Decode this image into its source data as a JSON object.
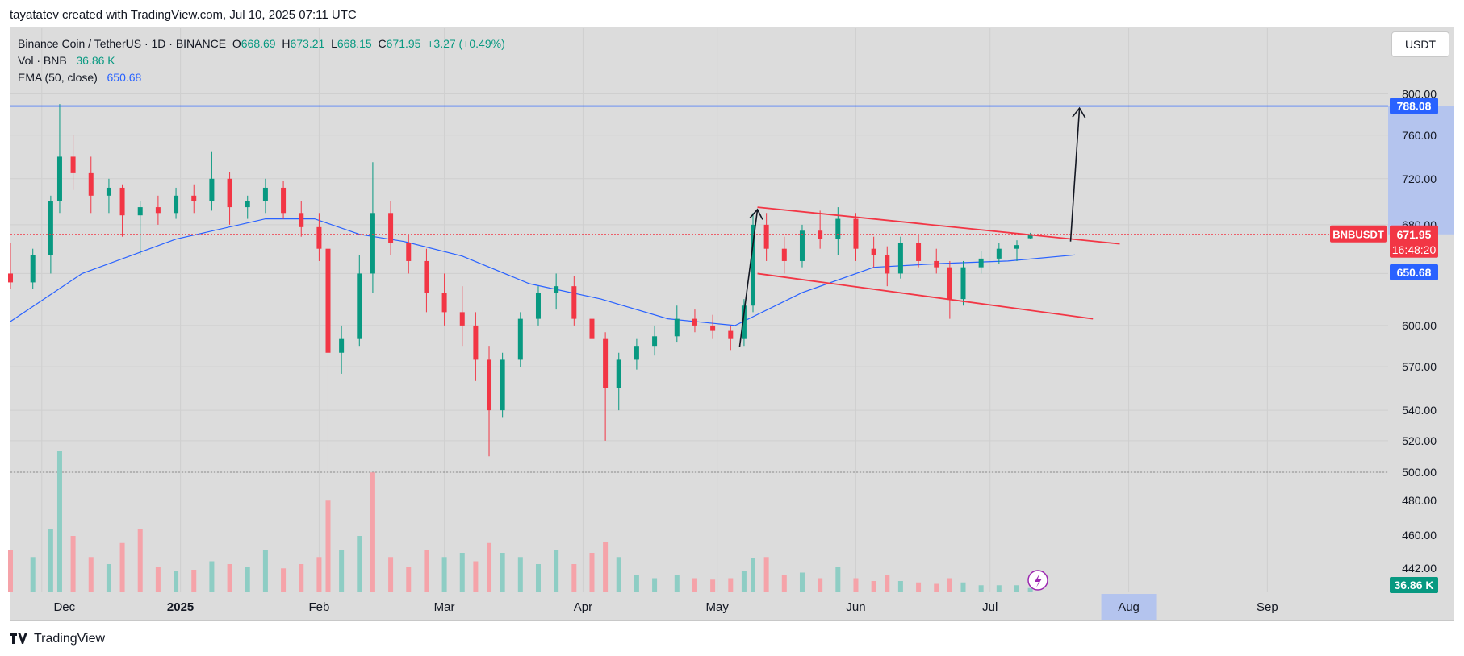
{
  "attribution": "tayatatev created with TradingView.com, Jul 10, 2025 07:11 UTC",
  "currency_button": "USDT",
  "footer_brand": "TradingView",
  "legend": {
    "symbol": "Binance Coin / TetherUS · 1D · BINANCE",
    "open_label": "O",
    "open": "668.69",
    "high_label": "H",
    "high": "673.21",
    "low_label": "L",
    "low": "668.15",
    "close_label": "C",
    "close": "671.95",
    "change": "+3.27 (+0.49%)",
    "vol_label": "Vol · BNB",
    "vol_value": "36.86 K",
    "ema_label": "EMA (50, close)",
    "ema_value": "650.68"
  },
  "colors": {
    "up": "#089981",
    "down": "#f23645",
    "ema": "#2962ff",
    "target": "#2962ff",
    "channel": "#f23645",
    "arrow": "#131722"
  },
  "chart_data": {
    "type": "candlestick",
    "symbol": "BNBUSDT",
    "price_axis": {
      "ticks": [
        500,
        520,
        540,
        570,
        600,
        640,
        680,
        720,
        760,
        800
      ]
    },
    "price_axis_tick_labels": [
      "500.00",
      "520.00",
      "540.00",
      "570.00",
      "600.00",
      "640.00",
      "680.00",
      "720.00",
      "760.00",
      "800.00"
    ],
    "volume_axis_tick_labels": [
      "480.00",
      "460.00",
      "442.00"
    ],
    "time_axis": {
      "labels": [
        "Dec",
        "2025",
        "Feb",
        "Mar",
        "Apr",
        "May",
        "Jun",
        "Jul",
        "Aug",
        "Sep"
      ],
      "label_dates": [
        "2024-12-01",
        "2025-01-01",
        "2025-02-01",
        "2025-03-01",
        "2025-04-01",
        "2025-05-01",
        "2025-06-01",
        "2025-07-01",
        "2025-08-01",
        "2025-09-01"
      ],
      "highlighted": "Aug"
    },
    "x_range": [
      "2024-11-24",
      "2025-09-28"
    ],
    "price_range": [
      500,
      815
    ],
    "badges": {
      "symbol": "BNBUSDT",
      "last_price": "671.95",
      "countdown": "16:48:20",
      "ema": "650.68",
      "target": "788.08",
      "volume": "36.86 K"
    },
    "target_level": 788.08,
    "last_price": 671.95,
    "series": [
      {
        "date": "2024-11-24",
        "o": 640,
        "h": 665,
        "l": 628,
        "c": 633
      },
      {
        "date": "2024-11-29",
        "o": 633,
        "h": 660,
        "l": 628,
        "c": 655
      },
      {
        "date": "2024-12-03",
        "o": 655,
        "h": 705,
        "l": 640,
        "c": 700
      },
      {
        "date": "2024-12-05",
        "o": 700,
        "h": 790,
        "l": 690,
        "c": 740
      },
      {
        "date": "2024-12-08",
        "o": 740,
        "h": 760,
        "l": 710,
        "c": 725
      },
      {
        "date": "2024-12-12",
        "o": 725,
        "h": 740,
        "l": 690,
        "c": 705
      },
      {
        "date": "2024-12-16",
        "o": 705,
        "h": 720,
        "l": 690,
        "c": 712
      },
      {
        "date": "2024-12-19",
        "o": 712,
        "h": 715,
        "l": 670,
        "c": 688
      },
      {
        "date": "2024-12-23",
        "o": 688,
        "h": 700,
        "l": 655,
        "c": 695
      },
      {
        "date": "2024-12-27",
        "o": 695,
        "h": 705,
        "l": 680,
        "c": 690
      },
      {
        "date": "2024-12-31",
        "o": 690,
        "h": 712,
        "l": 685,
        "c": 705
      },
      {
        "date": "2025-01-04",
        "o": 705,
        "h": 715,
        "l": 690,
        "c": 700
      },
      {
        "date": "2025-01-08",
        "o": 700,
        "h": 745,
        "l": 692,
        "c": 720
      },
      {
        "date": "2025-01-12",
        "o": 720,
        "h": 726,
        "l": 680,
        "c": 695
      },
      {
        "date": "2025-01-16",
        "o": 695,
        "h": 705,
        "l": 685,
        "c": 700
      },
      {
        "date": "2025-01-20",
        "o": 700,
        "h": 720,
        "l": 690,
        "c": 712
      },
      {
        "date": "2025-01-24",
        "o": 712,
        "h": 718,
        "l": 685,
        "c": 690
      },
      {
        "date": "2025-01-28",
        "o": 690,
        "h": 700,
        "l": 670,
        "c": 678
      },
      {
        "date": "2025-02-01",
        "o": 678,
        "h": 690,
        "l": 650,
        "c": 660
      },
      {
        "date": "2025-02-03",
        "o": 660,
        "h": 665,
        "l": 500,
        "c": 580
      },
      {
        "date": "2025-02-06",
        "o": 580,
        "h": 600,
        "l": 565,
        "c": 590
      },
      {
        "date": "2025-02-10",
        "o": 590,
        "h": 655,
        "l": 585,
        "c": 640
      },
      {
        "date": "2025-02-13",
        "o": 640,
        "h": 735,
        "l": 625,
        "c": 690
      },
      {
        "date": "2025-02-17",
        "o": 690,
        "h": 700,
        "l": 655,
        "c": 665
      },
      {
        "date": "2025-02-21",
        "o": 665,
        "h": 672,
        "l": 640,
        "c": 650
      },
      {
        "date": "2025-02-25",
        "o": 650,
        "h": 660,
        "l": 610,
        "c": 625
      },
      {
        "date": "2025-03-01",
        "o": 625,
        "h": 640,
        "l": 600,
        "c": 610
      },
      {
        "date": "2025-03-05",
        "o": 610,
        "h": 630,
        "l": 585,
        "c": 600
      },
      {
        "date": "2025-03-08",
        "o": 600,
        "h": 610,
        "l": 560,
        "c": 575
      },
      {
        "date": "2025-03-11",
        "o": 575,
        "h": 585,
        "l": 510,
        "c": 540
      },
      {
        "date": "2025-03-14",
        "o": 540,
        "h": 580,
        "l": 535,
        "c": 575
      },
      {
        "date": "2025-03-18",
        "o": 575,
        "h": 610,
        "l": 570,
        "c": 605
      },
      {
        "date": "2025-03-22",
        "o": 605,
        "h": 630,
        "l": 600,
        "c": 625
      },
      {
        "date": "2025-03-26",
        "o": 625,
        "h": 640,
        "l": 612,
        "c": 630
      },
      {
        "date": "2025-03-30",
        "o": 630,
        "h": 638,
        "l": 600,
        "c": 605
      },
      {
        "date": "2025-04-03",
        "o": 605,
        "h": 615,
        "l": 585,
        "c": 590
      },
      {
        "date": "2025-04-06",
        "o": 590,
        "h": 595,
        "l": 520,
        "c": 555
      },
      {
        "date": "2025-04-09",
        "o": 555,
        "h": 580,
        "l": 540,
        "c": 575
      },
      {
        "date": "2025-04-13",
        "o": 575,
        "h": 590,
        "l": 568,
        "c": 585
      },
      {
        "date": "2025-04-17",
        "o": 585,
        "h": 600,
        "l": 578,
        "c": 592
      },
      {
        "date": "2025-04-22",
        "o": 592,
        "h": 615,
        "l": 588,
        "c": 605
      },
      {
        "date": "2025-04-26",
        "o": 605,
        "h": 612,
        "l": 595,
        "c": 600
      },
      {
        "date": "2025-04-30",
        "o": 600,
        "h": 608,
        "l": 590,
        "c": 596
      },
      {
        "date": "2025-05-04",
        "o": 596,
        "h": 600,
        "l": 582,
        "c": 590
      },
      {
        "date": "2025-05-07",
        "o": 590,
        "h": 620,
        "l": 585,
        "c": 615
      },
      {
        "date": "2025-05-09",
        "o": 615,
        "h": 690,
        "l": 610,
        "c": 680
      },
      {
        "date": "2025-05-12",
        "o": 680,
        "h": 690,
        "l": 650,
        "c": 660
      },
      {
        "date": "2025-05-16",
        "o": 660,
        "h": 670,
        "l": 640,
        "c": 650
      },
      {
        "date": "2025-05-20",
        "o": 650,
        "h": 680,
        "l": 645,
        "c": 675
      },
      {
        "date": "2025-05-24",
        "o": 675,
        "h": 692,
        "l": 660,
        "c": 668
      },
      {
        "date": "2025-05-28",
        "o": 668,
        "h": 695,
        "l": 655,
        "c": 685
      },
      {
        "date": "2025-06-01",
        "o": 685,
        "h": 690,
        "l": 650,
        "c": 660
      },
      {
        "date": "2025-06-05",
        "o": 660,
        "h": 670,
        "l": 645,
        "c": 655
      },
      {
        "date": "2025-06-08",
        "o": 655,
        "h": 662,
        "l": 630,
        "c": 640
      },
      {
        "date": "2025-06-11",
        "o": 640,
        "h": 670,
        "l": 636,
        "c": 665
      },
      {
        "date": "2025-06-15",
        "o": 665,
        "h": 672,
        "l": 645,
        "c": 650
      },
      {
        "date": "2025-06-19",
        "o": 650,
        "h": 660,
        "l": 640,
        "c": 645
      },
      {
        "date": "2025-06-22",
        "o": 645,
        "h": 650,
        "l": 605,
        "c": 620
      },
      {
        "date": "2025-06-25",
        "o": 620,
        "h": 650,
        "l": 615,
        "c": 645
      },
      {
        "date": "2025-06-29",
        "o": 645,
        "h": 658,
        "l": 640,
        "c": 652
      },
      {
        "date": "2025-07-03",
        "o": 652,
        "h": 665,
        "l": 648,
        "c": 660
      },
      {
        "date": "2025-07-07",
        "o": 660,
        "h": 667,
        "l": 650,
        "c": 663
      },
      {
        "date": "2025-07-10",
        "o": 668.69,
        "h": 673.21,
        "l": 668.15,
        "c": 671.95
      }
    ],
    "ema": [
      {
        "date": "2024-11-24",
        "v": 603
      },
      {
        "date": "2024-12-10",
        "v": 640
      },
      {
        "date": "2024-12-31",
        "v": 668
      },
      {
        "date": "2025-01-20",
        "v": 685
      },
      {
        "date": "2025-01-31",
        "v": 685
      },
      {
        "date": "2025-02-10",
        "v": 672
      },
      {
        "date": "2025-02-20",
        "v": 666
      },
      {
        "date": "2025-03-05",
        "v": 654
      },
      {
        "date": "2025-03-20",
        "v": 632
      },
      {
        "date": "2025-04-05",
        "v": 620
      },
      {
        "date": "2025-04-20",
        "v": 605
      },
      {
        "date": "2025-05-05",
        "v": 600
      },
      {
        "date": "2025-05-20",
        "v": 625
      },
      {
        "date": "2025-06-05",
        "v": 645
      },
      {
        "date": "2025-06-20",
        "v": 648
      },
      {
        "date": "2025-07-05",
        "v": 650
      },
      {
        "date": "2025-07-20",
        "v": 655
      }
    ],
    "volume": [
      {
        "date": "2024-11-24",
        "v": 0.3,
        "d": 1
      },
      {
        "date": "2024-11-29",
        "v": 0.25,
        "d": 0
      },
      {
        "date": "2024-12-03",
        "v": 0.45,
        "d": 0
      },
      {
        "date": "2024-12-05",
        "v": 1.0,
        "d": 0
      },
      {
        "date": "2024-12-08",
        "v": 0.4,
        "d": 1
      },
      {
        "date": "2024-12-12",
        "v": 0.25,
        "d": 1
      },
      {
        "date": "2024-12-16",
        "v": 0.2,
        "d": 0
      },
      {
        "date": "2024-12-19",
        "v": 0.35,
        "d": 1
      },
      {
        "date": "2024-12-23",
        "v": 0.45,
        "d": 1
      },
      {
        "date": "2024-12-27",
        "v": 0.18,
        "d": 1
      },
      {
        "date": "2024-12-31",
        "v": 0.15,
        "d": 0
      },
      {
        "date": "2025-01-04",
        "v": 0.16,
        "d": 1
      },
      {
        "date": "2025-01-08",
        "v": 0.22,
        "d": 0
      },
      {
        "date": "2025-01-12",
        "v": 0.2,
        "d": 1
      },
      {
        "date": "2025-01-16",
        "v": 0.18,
        "d": 0
      },
      {
        "date": "2025-01-20",
        "v": 0.3,
        "d": 0
      },
      {
        "date": "2025-01-24",
        "v": 0.17,
        "d": 1
      },
      {
        "date": "2025-01-28",
        "v": 0.2,
        "d": 1
      },
      {
        "date": "2025-02-01",
        "v": 0.25,
        "d": 1
      },
      {
        "date": "2025-02-03",
        "v": 0.65,
        "d": 1
      },
      {
        "date": "2025-02-06",
        "v": 0.3,
        "d": 0
      },
      {
        "date": "2025-02-10",
        "v": 0.4,
        "d": 0
      },
      {
        "date": "2025-02-13",
        "v": 0.85,
        "d": 1
      },
      {
        "date": "2025-02-17",
        "v": 0.25,
        "d": 1
      },
      {
        "date": "2025-02-21",
        "v": 0.18,
        "d": 1
      },
      {
        "date": "2025-02-25",
        "v": 0.3,
        "d": 1
      },
      {
        "date": "2025-03-01",
        "v": 0.25,
        "d": 0
      },
      {
        "date": "2025-03-05",
        "v": 0.28,
        "d": 0
      },
      {
        "date": "2025-03-08",
        "v": 0.22,
        "d": 1
      },
      {
        "date": "2025-03-11",
        "v": 0.35,
        "d": 1
      },
      {
        "date": "2025-03-14",
        "v": 0.28,
        "d": 0
      },
      {
        "date": "2025-03-18",
        "v": 0.25,
        "d": 0
      },
      {
        "date": "2025-03-22",
        "v": 0.2,
        "d": 0
      },
      {
        "date": "2025-03-26",
        "v": 0.3,
        "d": 0
      },
      {
        "date": "2025-03-30",
        "v": 0.2,
        "d": 1
      },
      {
        "date": "2025-04-03",
        "v": 0.28,
        "d": 1
      },
      {
        "date": "2025-04-06",
        "v": 0.36,
        "d": 1
      },
      {
        "date": "2025-04-09",
        "v": 0.25,
        "d": 0
      },
      {
        "date": "2025-04-13",
        "v": 0.12,
        "d": 0
      },
      {
        "date": "2025-04-17",
        "v": 0.1,
        "d": 0
      },
      {
        "date": "2025-04-22",
        "v": 0.12,
        "d": 0
      },
      {
        "date": "2025-04-26",
        "v": 0.1,
        "d": 1
      },
      {
        "date": "2025-04-30",
        "v": 0.09,
        "d": 1
      },
      {
        "date": "2025-05-04",
        "v": 0.1,
        "d": 1
      },
      {
        "date": "2025-05-07",
        "v": 0.15,
        "d": 0
      },
      {
        "date": "2025-05-09",
        "v": 0.24,
        "d": 0
      },
      {
        "date": "2025-05-12",
        "v": 0.25,
        "d": 1
      },
      {
        "date": "2025-05-16",
        "v": 0.12,
        "d": 1
      },
      {
        "date": "2025-05-20",
        "v": 0.14,
        "d": 0
      },
      {
        "date": "2025-05-24",
        "v": 0.1,
        "d": 1
      },
      {
        "date": "2025-05-28",
        "v": 0.18,
        "d": 0
      },
      {
        "date": "2025-06-01",
        "v": 0.1,
        "d": 1
      },
      {
        "date": "2025-06-05",
        "v": 0.08,
        "d": 1
      },
      {
        "date": "2025-06-08",
        "v": 0.12,
        "d": 1
      },
      {
        "date": "2025-06-11",
        "v": 0.08,
        "d": 0
      },
      {
        "date": "2025-06-15",
        "v": 0.07,
        "d": 1
      },
      {
        "date": "2025-06-19",
        "v": 0.06,
        "d": 1
      },
      {
        "date": "2025-06-22",
        "v": 0.1,
        "d": 1
      },
      {
        "date": "2025-06-25",
        "v": 0.07,
        "d": 0
      },
      {
        "date": "2025-06-29",
        "v": 0.05,
        "d": 0
      },
      {
        "date": "2025-07-03",
        "v": 0.05,
        "d": 0
      },
      {
        "date": "2025-07-07",
        "v": 0.05,
        "d": 0
      },
      {
        "date": "2025-07-10",
        "v": 0.03,
        "d": 0
      }
    ],
    "annotations": {
      "channel_upper": [
        {
          "date": "2025-05-10",
          "p": 695
        },
        {
          "date": "2025-07-30",
          "p": 664
        }
      ],
      "channel_lower": [
        {
          "date": "2025-05-10",
          "p": 640
        },
        {
          "date": "2025-07-24",
          "p": 605
        }
      ],
      "arrow_up_small": [
        {
          "date": "2025-05-06",
          "p": 584
        },
        {
          "date": "2025-05-10",
          "p": 693
        }
      ],
      "arrow_up_target": [
        {
          "date": "2025-07-19",
          "p": 666
        },
        {
          "date": "2025-07-21",
          "p": 786
        }
      ]
    }
  }
}
